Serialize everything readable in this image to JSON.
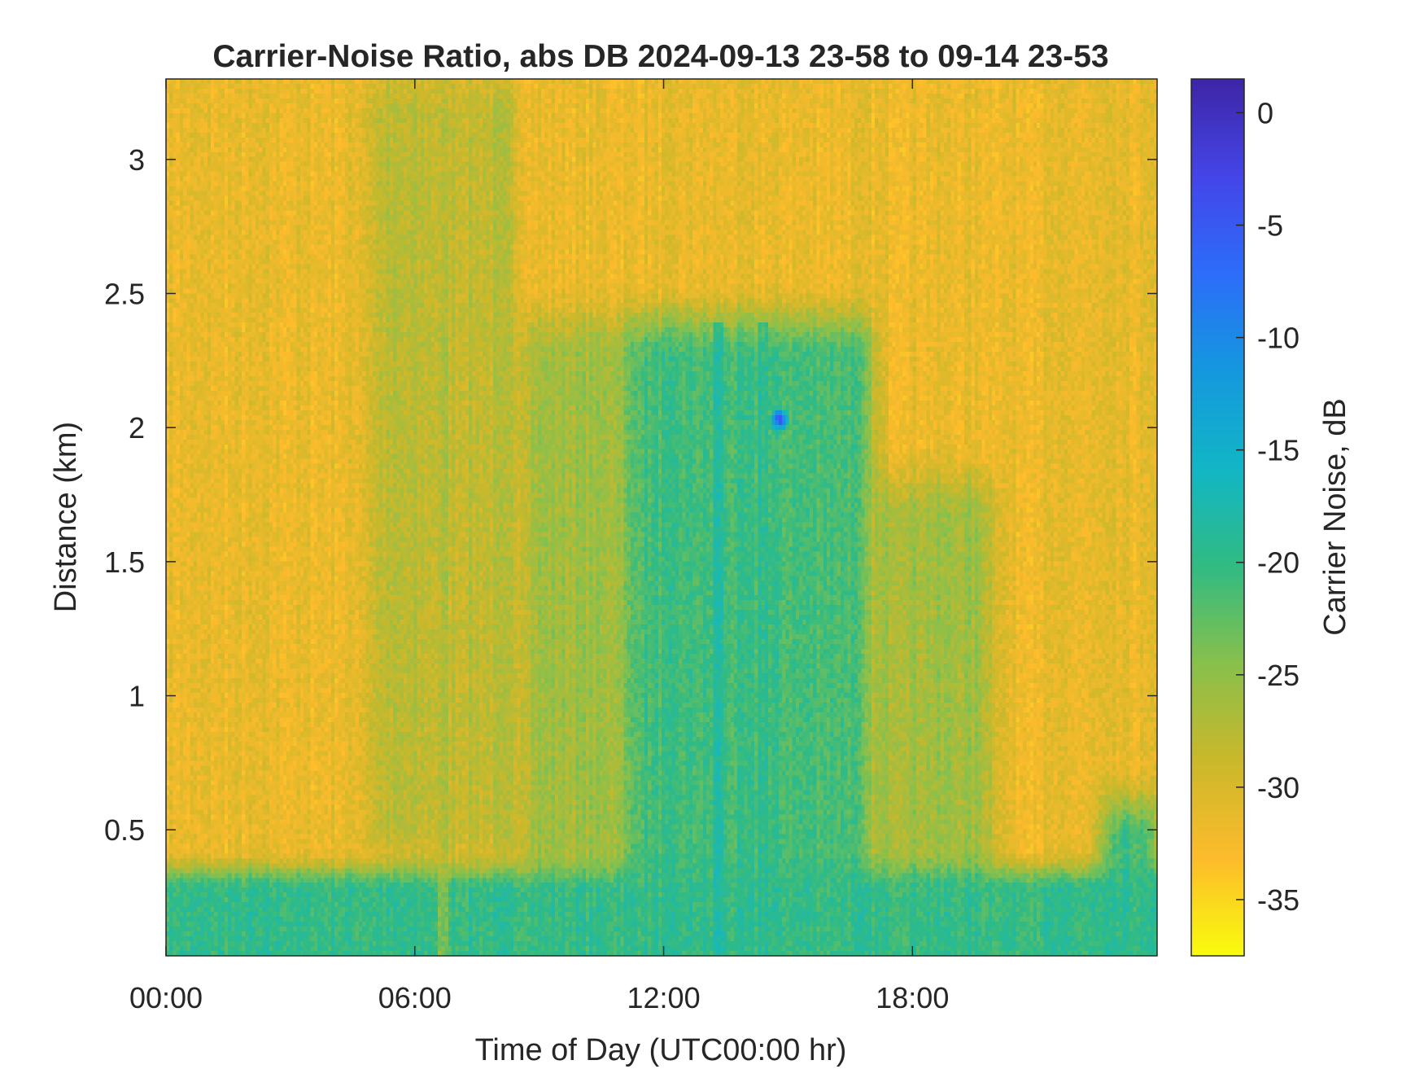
{
  "chart_data": {
    "type": "heatmap",
    "title": "Carrier-Noise Ratio, abs DB 2024-09-13 23-58 to 09-14 23-53",
    "xlabel": "Time of Day (UTC00:00 hr)",
    "ylabel": "Distance (km)",
    "colorbar_label": "Carrier Noise, dB",
    "x_range_hours": [
      0,
      23.9
    ],
    "y_range_km": [
      0.03,
      3.3
    ],
    "color_range_db": [
      -37.5,
      1.5
    ],
    "x_ticks": [
      {
        "value": 0,
        "label": "00:00"
      },
      {
        "value": 6,
        "label": "06:00"
      },
      {
        "value": 12,
        "label": "12:00"
      },
      {
        "value": 18,
        "label": "18:00"
      }
    ],
    "y_ticks": [
      {
        "value": 0.5,
        "label": "0.5"
      },
      {
        "value": 1,
        "label": "1"
      },
      {
        "value": 1.5,
        "label": "1.5"
      },
      {
        "value": 2,
        "label": "2"
      },
      {
        "value": 2.5,
        "label": "2.5"
      },
      {
        "value": 3,
        "label": "3"
      }
    ],
    "colorbar_ticks": [
      {
        "value": 0,
        "label": "0"
      },
      {
        "value": -5,
        "label": "-5"
      },
      {
        "value": -10,
        "label": "-10"
      },
      {
        "value": -15,
        "label": "-15"
      },
      {
        "value": -20,
        "label": "-20"
      },
      {
        "value": -25,
        "label": "-25"
      },
      {
        "value": -30,
        "label": "-30"
      },
      {
        "value": -35,
        "label": "-35"
      }
    ],
    "colormap": [
      "#f9fb0e",
      "#fdbb2c",
      "#cbb82b",
      "#88c04c",
      "#31bb83",
      "#12b6c6",
      "#1499de",
      "#2c6ef9",
      "#4446e9",
      "#3e26a8"
    ],
    "grid": false,
    "field_model": {
      "background_db": -31.5,
      "boundary_layer": {
        "top_km": 0.35,
        "value_db": -20
      },
      "regions": [
        {
          "x_hours": [
            0,
            4.8
          ],
          "y_km": [
            0.55,
            3.3
          ],
          "value_db": -31.5
        },
        {
          "x_hours": [
            4.8,
            8.5
          ],
          "y_km": [
            0.4,
            3.3
          ],
          "value_db": -28
        },
        {
          "x_hours": [
            8.5,
            11
          ],
          "y_km": [
            0.3,
            2.4
          ],
          "value_db": -26
        },
        {
          "x_hours": [
            11,
            17
          ],
          "y_km": [
            0.05,
            2.4
          ],
          "value_db": -21
        },
        {
          "x_hours": [
            17,
            20
          ],
          "y_km": [
            0.05,
            1.8
          ],
          "value_db": -26
        },
        {
          "x_hours": [
            22.6,
            23.9
          ],
          "y_km": [
            0.05,
            0.6
          ],
          "value_db": -21
        }
      ],
      "hotspot": {
        "x_hours": 14.8,
        "y_km": 2.03,
        "peak_db": -2
      },
      "streaks": [
        {
          "x_hours": 6.7,
          "value_db": -27
        },
        {
          "x_hours": 13.3,
          "value_db": -17
        },
        {
          "x_hours": 14.4,
          "value_db": -18
        }
      ]
    }
  }
}
